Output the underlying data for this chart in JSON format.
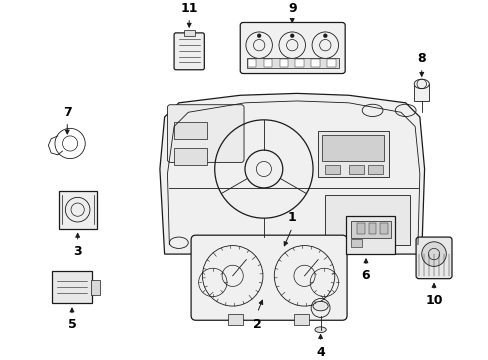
{
  "background_color": "#ffffff",
  "line_color": "#1a1a1a",
  "text_color": "#000000",
  "font_size": 9,
  "dash_color": "#f8f8f8",
  "part_fill": "#f2f2f2",
  "part_fill2": "#e8e8e8"
}
